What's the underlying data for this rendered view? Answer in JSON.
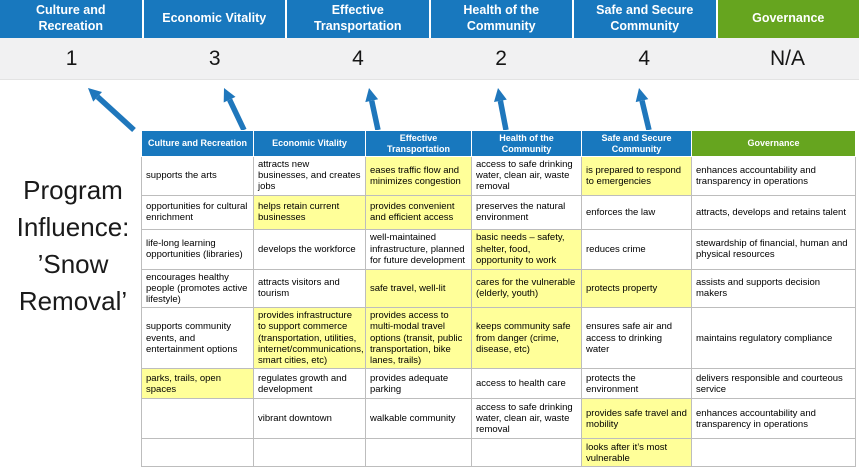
{
  "title": "Program Influence: ’Snow Removal’",
  "colors": {
    "pillar_blue": "#1878BE",
    "pillar_green": "#66A51F",
    "highlight_yellow": "#FFFF99",
    "arrow_blue": "#1F77BC",
    "score_band_gray": "#F1F1F2"
  },
  "pillars": [
    {
      "label": "Culture and Recreation",
      "score": "1",
      "color": "blue"
    },
    {
      "label": "Economic Vitality",
      "score": "3",
      "color": "blue"
    },
    {
      "label": "Effective Transportation",
      "score": "4",
      "color": "blue"
    },
    {
      "label": "Health of the Community",
      "score": "2",
      "color": "blue"
    },
    {
      "label": "Safe and Secure Community",
      "score": "4",
      "color": "blue"
    },
    {
      "label": "Governance",
      "score": "N/A",
      "color": "green"
    }
  ],
  "matrix": {
    "headers": [
      {
        "label": "Culture and Recreation",
        "color": "blue"
      },
      {
        "label": "Economic Vitality",
        "color": "blue"
      },
      {
        "label": "Effective Transportation",
        "color": "blue"
      },
      {
        "label": "Health of the Community",
        "color": "blue"
      },
      {
        "label": "Safe and Secure Community",
        "color": "blue"
      },
      {
        "label": "Governance",
        "color": "green"
      }
    ],
    "rows": [
      [
        {
          "text": "supports the arts",
          "highlight": false
        },
        {
          "text": "attracts new businesses, and creates jobs",
          "highlight": false
        },
        {
          "text": "eases traffic flow and minimizes congestion",
          "highlight": true
        },
        {
          "text": "access to safe drinking water, clean air, waste removal",
          "highlight": false
        },
        {
          "text": "is prepared to respond to emergencies",
          "highlight": true
        },
        {
          "text": "enhances accountability and transparency in operations",
          "highlight": false
        }
      ],
      [
        {
          "text": "opportunities for cultural enrichment",
          "highlight": false
        },
        {
          "text": "helps retain current businesses",
          "highlight": true
        },
        {
          "text": "provides convenient and efficient access",
          "highlight": true
        },
        {
          "text": "preserves the natural environment",
          "highlight": false
        },
        {
          "text": "enforces the law",
          "highlight": false
        },
        {
          "text": "attracts, develops and retains talent",
          "highlight": false
        }
      ],
      [
        {
          "text": "life-long learning opportunities (libraries)",
          "highlight": false
        },
        {
          "text": "develops the workforce",
          "highlight": false
        },
        {
          "text": "well-maintained infrastructure, planned for future development",
          "highlight": false
        },
        {
          "text": "basic needs – safety, shelter, food, opportunity to work",
          "highlight": true
        },
        {
          "text": "reduces crime",
          "highlight": false
        },
        {
          "text": "stewardship of financial, human and physical resources",
          "highlight": false
        }
      ],
      [
        {
          "text": "encourages healthy people (promotes active lifestyle)",
          "highlight": false
        },
        {
          "text": "attracts visitors and tourism",
          "highlight": false
        },
        {
          "text": "safe travel, well-lit",
          "highlight": true
        },
        {
          "text": "cares for the vulnerable (elderly, youth)",
          "highlight": true
        },
        {
          "text": "protects property",
          "highlight": true
        },
        {
          "text": "assists and supports decision makers",
          "highlight": false
        }
      ],
      [
        {
          "text": "supports community events, and entertainment options",
          "highlight": false
        },
        {
          "text": "provides infrastructure to support commerce (transportation, utilities, internet/communications, smart cities, etc)",
          "highlight": true
        },
        {
          "text": "provides access to multi-modal travel options (transit, public transportation, bike lanes, trails)",
          "highlight": true
        },
        {
          "text": "keeps community safe from danger (crime, disease, etc)",
          "highlight": true
        },
        {
          "text": "ensures safe air and access to drinking water",
          "highlight": false
        },
        {
          "text": "maintains regulatory compliance",
          "highlight": false
        }
      ],
      [
        {
          "text": "parks, trails, open spaces",
          "highlight": true
        },
        {
          "text": "regulates growth and development",
          "highlight": false
        },
        {
          "text": "provides adequate parking",
          "highlight": false
        },
        {
          "text": "access to health care",
          "highlight": false
        },
        {
          "text": "protects the environment",
          "highlight": false
        },
        {
          "text": "delivers responsible and courteous service",
          "highlight": false
        }
      ],
      [
        {
          "text": "",
          "highlight": false
        },
        {
          "text": "vibrant downtown",
          "highlight": false
        },
        {
          "text": "walkable community",
          "highlight": false
        },
        {
          "text": "access to safe drinking water, clean air, waste removal",
          "highlight": false
        },
        {
          "text": "provides safe travel and mobility",
          "highlight": true
        },
        {
          "text": "enhances accountability and transparency in operations",
          "highlight": false
        }
      ],
      [
        {
          "text": "",
          "highlight": false
        },
        {
          "text": "",
          "highlight": false
        },
        {
          "text": "",
          "highlight": false
        },
        {
          "text": "",
          "highlight": false
        },
        {
          "text": "looks after it’s most vulnerable",
          "highlight": true
        },
        {
          "text": "",
          "highlight": false
        }
      ]
    ]
  }
}
